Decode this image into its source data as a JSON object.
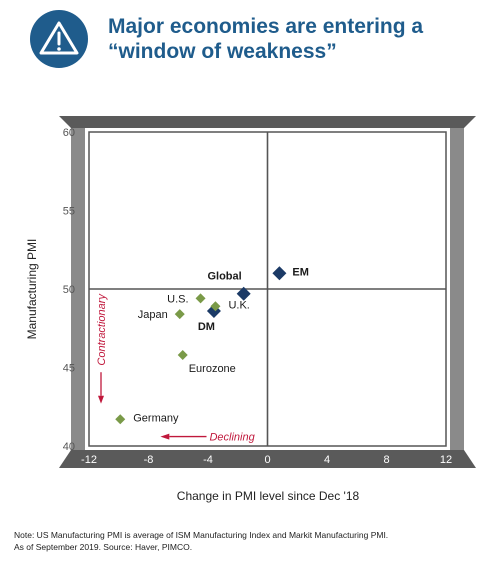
{
  "header": {
    "title_line1": "Major economies are entering a",
    "title_line2": "“window of weakness”",
    "icon": "warning-triangle-icon",
    "badge_color": "#1f5c8c"
  },
  "chart_data": {
    "type": "scatter",
    "xlabel": "Change in PMI level since Dec '18",
    "ylabel": "Manufacturing PMI",
    "xlim": [
      -12,
      12
    ],
    "ylim": [
      40,
      60
    ],
    "x_ticks": [
      -12,
      -8,
      -4,
      0,
      4,
      8,
      12
    ],
    "y_ticks": [
      40,
      45,
      50,
      55,
      60
    ],
    "quadrant_lines": {
      "x": 0,
      "y": 50
    },
    "grid": false,
    "colors": {
      "country": "#7a9a48",
      "aggregate": "#1b3a66",
      "annotation": "#c0183c",
      "frame": "#555555"
    },
    "points": [
      {
        "label": "EM",
        "x": 0.8,
        "y": 51.0,
        "kind": "aggregate",
        "label_side": "right",
        "bold": true
      },
      {
        "label": "Global",
        "x": -1.6,
        "y": 49.7,
        "kind": "aggregate",
        "label_side": "above-left",
        "bold": true
      },
      {
        "label": "DM",
        "x": -3.6,
        "y": 48.6,
        "kind": "aggregate",
        "label_side": "below-left",
        "bold": true
      },
      {
        "label": "U.S.",
        "x": -4.5,
        "y": 49.4,
        "kind": "country",
        "label_side": "left",
        "bold": false
      },
      {
        "label": "U.K.",
        "x": -3.5,
        "y": 48.9,
        "kind": "country",
        "label_side": "right",
        "bold": false
      },
      {
        "label": "Japan",
        "x": -5.9,
        "y": 48.4,
        "kind": "country",
        "label_side": "left",
        "bold": false
      },
      {
        "label": "Eurozone",
        "x": -5.7,
        "y": 45.8,
        "kind": "country",
        "label_side": "below-right",
        "bold": false
      },
      {
        "label": "Germany",
        "x": -9.9,
        "y": 41.7,
        "kind": "country",
        "label_side": "right",
        "bold": false
      }
    ],
    "annotations": [
      {
        "text": "Contractionary",
        "direction": "down"
      },
      {
        "text": "Declining",
        "direction": "left"
      }
    ]
  },
  "note": {
    "line1": "Note: US Manufacturing PMI is average of ISM  Manufacturing Index and Markit Manufacturing PMI.",
    "line2": "As of September 2019. Source: Haver, PIMCO."
  }
}
